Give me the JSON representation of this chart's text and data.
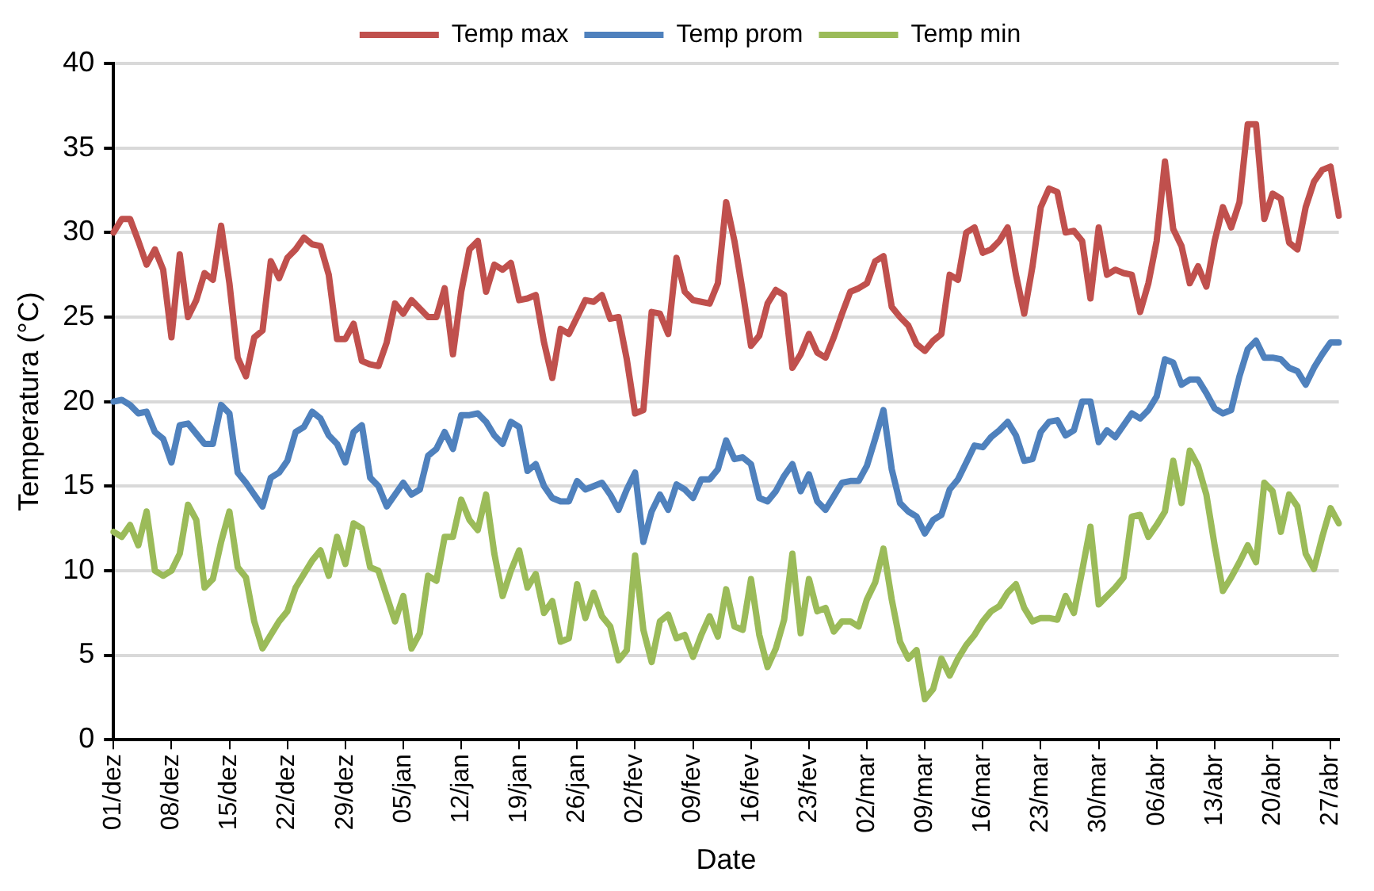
{
  "chart_data": {
    "type": "line",
    "xlabel": "Date",
    "ylabel": "Temperatura (°C)",
    "categories": [
      "01/dez",
      null,
      null,
      null,
      null,
      null,
      null,
      "08/dez",
      null,
      null,
      null,
      null,
      null,
      null,
      "15/dez",
      null,
      null,
      null,
      null,
      null,
      null,
      "22/dez",
      null,
      null,
      null,
      null,
      null,
      null,
      "29/dez",
      null,
      null,
      null,
      null,
      null,
      null,
      "05/jan",
      null,
      null,
      null,
      null,
      null,
      null,
      "12/jan",
      null,
      null,
      null,
      null,
      null,
      null,
      "19/jan",
      null,
      null,
      null,
      null,
      null,
      null,
      "26/jan",
      null,
      null,
      null,
      null,
      null,
      null,
      "02/fev",
      null,
      null,
      null,
      null,
      null,
      null,
      "09/fev",
      null,
      null,
      null,
      null,
      null,
      null,
      "16/fev",
      null,
      null,
      null,
      null,
      null,
      null,
      "23/fev",
      null,
      null,
      null,
      null,
      null,
      null,
      "02/mar",
      null,
      null,
      null,
      null,
      null,
      null,
      "09/mar",
      null,
      null,
      null,
      null,
      null,
      null,
      "16/mar",
      null,
      null,
      null,
      null,
      null,
      null,
      "23/mar",
      null,
      null,
      null,
      null,
      null,
      null,
      "30/mar",
      null,
      null,
      null,
      null,
      null,
      null,
      "06/abr",
      null,
      null,
      null,
      null,
      null,
      null,
      "13/abr",
      null,
      null,
      null,
      null,
      null,
      null,
      "20/abr",
      null,
      null,
      null,
      null,
      null,
      null,
      "27/abr",
      null
    ],
    "series": [
      {
        "name": "Temp max",
        "color": "#c0504d",
        "values": [
          30.0,
          30.8,
          30.8,
          29.5,
          28.1,
          29.0,
          27.8,
          23.8,
          28.7,
          25.0,
          26.0,
          27.6,
          27.2,
          30.4,
          27.0,
          22.6,
          21.5,
          23.8,
          24.2,
          28.3,
          27.3,
          28.5,
          29.0,
          29.7,
          29.3,
          29.2,
          27.5,
          23.7,
          23.7,
          24.6,
          22.4,
          22.2,
          22.1,
          23.5,
          25.8,
          25.2,
          26.0,
          25.5,
          25.0,
          25.0,
          26.7,
          22.8,
          26.5,
          29.0,
          29.5,
          26.5,
          28.1,
          27.8,
          28.2,
          26.0,
          26.1,
          26.3,
          23.5,
          21.4,
          24.3,
          24.0,
          25.0,
          26.0,
          25.9,
          26.3,
          24.9,
          25.0,
          22.5,
          19.3,
          19.5,
          25.3,
          25.2,
          24.0,
          28.5,
          26.5,
          26.0,
          25.9,
          25.8,
          27.0,
          31.8,
          29.5,
          26.5,
          23.3,
          23.9,
          25.8,
          26.6,
          26.3,
          22.0,
          22.8,
          24.0,
          22.9,
          22.6,
          23.8,
          25.2,
          26.5,
          26.7,
          27.0,
          28.3,
          28.6,
          25.6,
          25.0,
          24.5,
          23.4,
          23.0,
          23.6,
          24.0,
          27.5,
          27.2,
          30.0,
          30.3,
          28.8,
          29.0,
          29.5,
          30.3,
          27.5,
          25.2,
          28.0,
          31.5,
          32.6,
          32.4,
          30.0,
          30.1,
          29.5,
          26.1,
          30.3,
          27.5,
          27.8,
          27.6,
          27.5,
          25.3,
          27.0,
          29.5,
          34.2,
          30.2,
          29.2,
          27.0,
          28.0,
          26.8,
          29.5,
          31.5,
          30.3,
          31.8,
          36.4,
          36.4,
          30.8,
          32.3,
          32.0,
          29.4,
          29.0,
          31.5,
          33.0,
          33.7,
          33.9,
          31.0
        ]
      },
      {
        "name": "Temp prom",
        "color": "#4f81bd",
        "values": [
          20.0,
          20.1,
          19.8,
          19.3,
          19.4,
          18.2,
          17.8,
          16.4,
          18.6,
          18.7,
          18.1,
          17.5,
          17.5,
          19.8,
          19.3,
          15.8,
          15.2,
          14.5,
          13.8,
          15.5,
          15.8,
          16.5,
          18.2,
          18.5,
          19.4,
          19.0,
          18.0,
          17.5,
          16.4,
          18.2,
          18.6,
          15.5,
          15.0,
          13.8,
          14.5,
          15.2,
          14.5,
          14.8,
          16.8,
          17.2,
          18.2,
          17.2,
          19.2,
          19.2,
          19.3,
          18.8,
          18.0,
          17.5,
          18.8,
          18.5,
          15.9,
          16.3,
          15.0,
          14.3,
          14.1,
          14.1,
          15.3,
          14.8,
          15.0,
          15.2,
          14.5,
          13.6,
          14.8,
          15.8,
          11.7,
          13.5,
          14.5,
          13.6,
          15.1,
          14.8,
          14.3,
          15.4,
          15.4,
          16.0,
          17.7,
          16.6,
          16.7,
          16.3,
          14.3,
          14.1,
          14.7,
          15.6,
          16.3,
          14.7,
          15.7,
          14.1,
          13.6,
          14.4,
          15.2,
          15.3,
          15.3,
          16.2,
          17.8,
          19.5,
          16.0,
          14.0,
          13.5,
          13.2,
          12.2,
          13.0,
          13.3,
          14.8,
          15.4,
          16.4,
          17.4,
          17.3,
          17.9,
          18.3,
          18.8,
          18.0,
          16.5,
          16.6,
          18.2,
          18.8,
          18.9,
          18.0,
          18.3,
          20.0,
          20.0,
          17.6,
          18.3,
          17.9,
          18.6,
          19.3,
          19.0,
          19.5,
          20.3,
          22.5,
          22.3,
          21.0,
          21.3,
          21.3,
          20.5,
          19.6,
          19.3,
          19.5,
          21.5,
          23.1,
          23.6,
          22.6,
          22.6,
          22.5,
          22.0,
          21.8,
          21.0,
          22.0,
          22.8,
          23.5,
          23.5
        ]
      },
      {
        "name": "Temp min",
        "color": "#9bbb59",
        "values": [
          12.3,
          12.0,
          12.7,
          11.5,
          13.5,
          10.0,
          9.7,
          10.0,
          11.0,
          13.9,
          13.0,
          9.0,
          9.5,
          11.7,
          13.5,
          10.2,
          9.6,
          7.0,
          5.4,
          6.2,
          7.0,
          7.6,
          9.0,
          9.8,
          10.6,
          11.2,
          9.7,
          12.0,
          10.4,
          12.8,
          12.5,
          10.2,
          10.0,
          8.5,
          7.0,
          8.5,
          5.4,
          6.3,
          9.7,
          9.4,
          12.0,
          12.0,
          14.2,
          13.0,
          12.4,
          14.5,
          11.0,
          8.5,
          10.0,
          11.2,
          9.0,
          9.8,
          7.5,
          8.2,
          5.8,
          6.0,
          9.2,
          7.2,
          8.7,
          7.3,
          6.7,
          4.7,
          5.3,
          10.9,
          6.5,
          4.6,
          7.0,
          7.4,
          6.0,
          6.2,
          4.9,
          6.2,
          7.3,
          6.1,
          8.9,
          6.7,
          6.5,
          9.5,
          6.2,
          4.3,
          5.4,
          7.1,
          11.0,
          6.3,
          9.5,
          7.6,
          7.8,
          6.4,
          7.0,
          7.0,
          6.7,
          8.3,
          9.3,
          11.3,
          8.3,
          5.8,
          4.8,
          5.3,
          2.4,
          3.0,
          4.8,
          3.8,
          4.8,
          5.6,
          6.2,
          7.0,
          7.6,
          7.9,
          8.7,
          9.2,
          7.8,
          7.0,
          7.2,
          7.2,
          7.1,
          8.5,
          7.5,
          10.0,
          12.6,
          8.0,
          8.5,
          9.0,
          9.6,
          13.2,
          13.3,
          12.0,
          12.7,
          13.5,
          16.5,
          14.0,
          17.1,
          16.2,
          14.5,
          11.5,
          8.8,
          9.6,
          10.5,
          11.5,
          10.5,
          15.2,
          14.7,
          12.3,
          14.5,
          13.8,
          11.0,
          10.1,
          12.0,
          13.7,
          12.8
        ]
      }
    ],
    "ylim": [
      0,
      40
    ],
    "yticks": [
      0,
      5,
      10,
      15,
      20,
      25,
      30,
      35,
      40
    ],
    "grid": "y",
    "legend": "top",
    "marker": "none"
  }
}
